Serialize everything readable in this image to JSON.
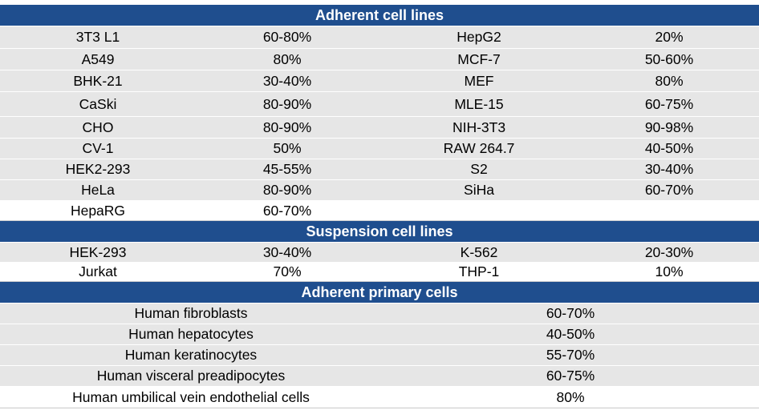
{
  "sections": {
    "adherent_lines": {
      "title": "Adherent cell lines",
      "rows": [
        [
          "3T3 L1",
          "60-80%",
          "HepG2",
          "20%"
        ],
        [
          "A549",
          "80%",
          "MCF-7",
          "50-60%"
        ],
        [
          "BHK-21",
          "30-40%",
          "MEF",
          "80%"
        ],
        [
          "CaSki",
          "80-90%",
          "MLE-15",
          "60-75%"
        ],
        [
          "CHO",
          "80-90%",
          "NIH-3T3",
          "90-98%"
        ],
        [
          "CV-1",
          "50%",
          "RAW 264.7",
          "40-50%"
        ],
        [
          "HEK2-293",
          "45-55%",
          "S2",
          "30-40%"
        ],
        [
          "HeLa",
          "80-90%",
          "SiHa",
          "60-70%"
        ],
        [
          "HepaRG",
          "60-70%",
          "",
          ""
        ]
      ]
    },
    "suspension_lines": {
      "title": "Suspension cell lines",
      "rows": [
        [
          "HEK-293",
          "30-40%",
          "K-562",
          "20-30%"
        ],
        [
          "Jurkat",
          "70%",
          "THP-1",
          "10%"
        ]
      ]
    },
    "primary_cells": {
      "title": "Adherent primary cells",
      "rows": [
        [
          "Human fibroblasts",
          "60-70%"
        ],
        [
          "Human hepatocytes",
          "40-50%"
        ],
        [
          "Human keratinocytes",
          "55-70%"
        ],
        [
          "Human visceral preadipocytes",
          "60-75%"
        ],
        [
          "Human umbilical vein endothelial cells",
          "80%"
        ]
      ]
    }
  }
}
